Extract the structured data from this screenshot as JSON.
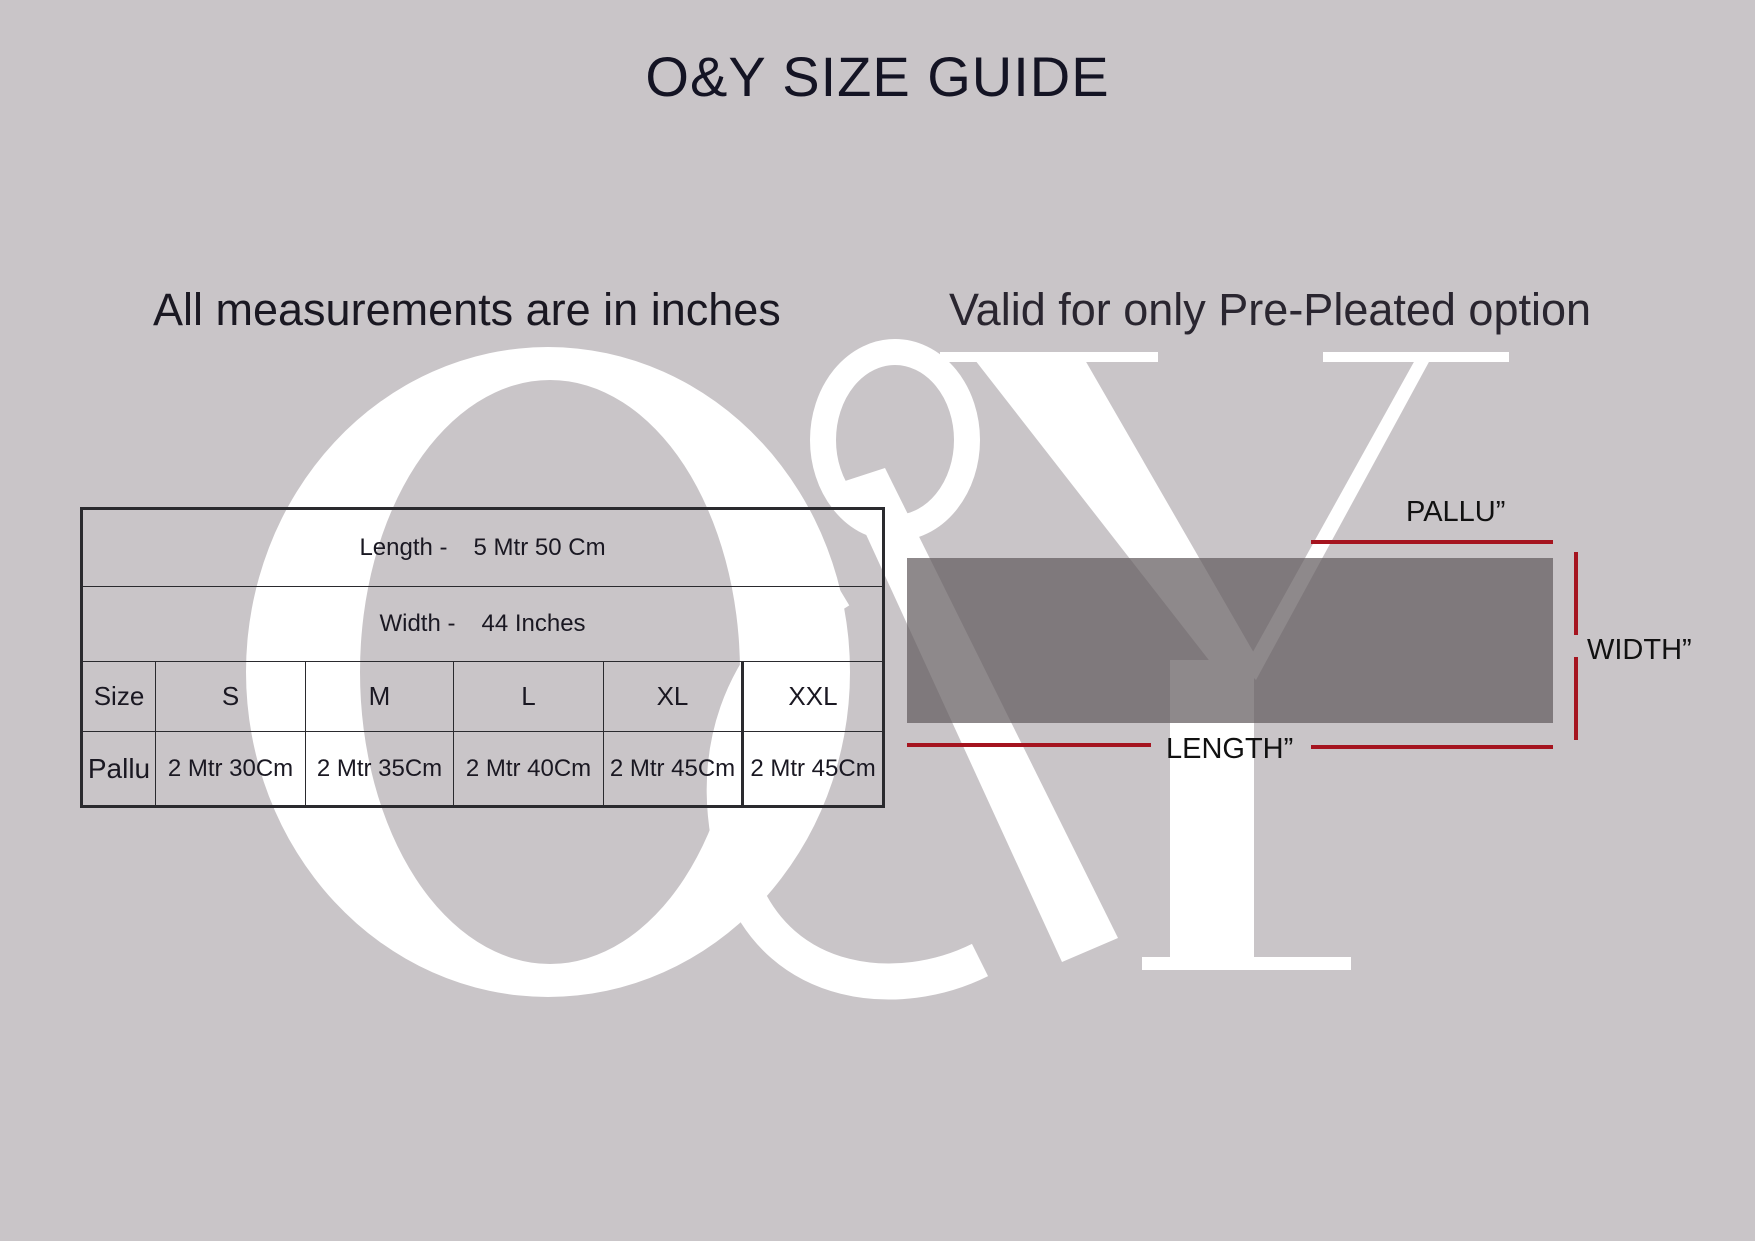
{
  "title": "O&Y SIZE GUIDE",
  "watermark_logo": "O&Y",
  "subtitle_left": "All measurements are in inches",
  "subtitle_right": "Valid for only Pre-Pleated option",
  "table": {
    "length_label": "Length -",
    "length_value": "5 Mtr 50 Cm",
    "width_label": "Width -",
    "width_value": "44 Inches",
    "size_header": "Size",
    "sizes": [
      "S",
      "M",
      "L",
      "XL",
      "XXL"
    ],
    "pallu_header": "Pallu",
    "pallu_values": [
      "2 Mtr 30Cm",
      "2 Mtr 35Cm",
      "2 Mtr 40Cm",
      "2 Mtr 45Cm",
      "2 Mtr 45Cm"
    ]
  },
  "diagram": {
    "pallu_label": "PALLU”",
    "width_label": "WIDTH”",
    "length_label": "LENGTH”",
    "fabric_color": "#7f797b",
    "measure_line_color": "#a5141f"
  },
  "colors": {
    "background": "#c9c5c8",
    "watermark": "#ffffff"
  }
}
